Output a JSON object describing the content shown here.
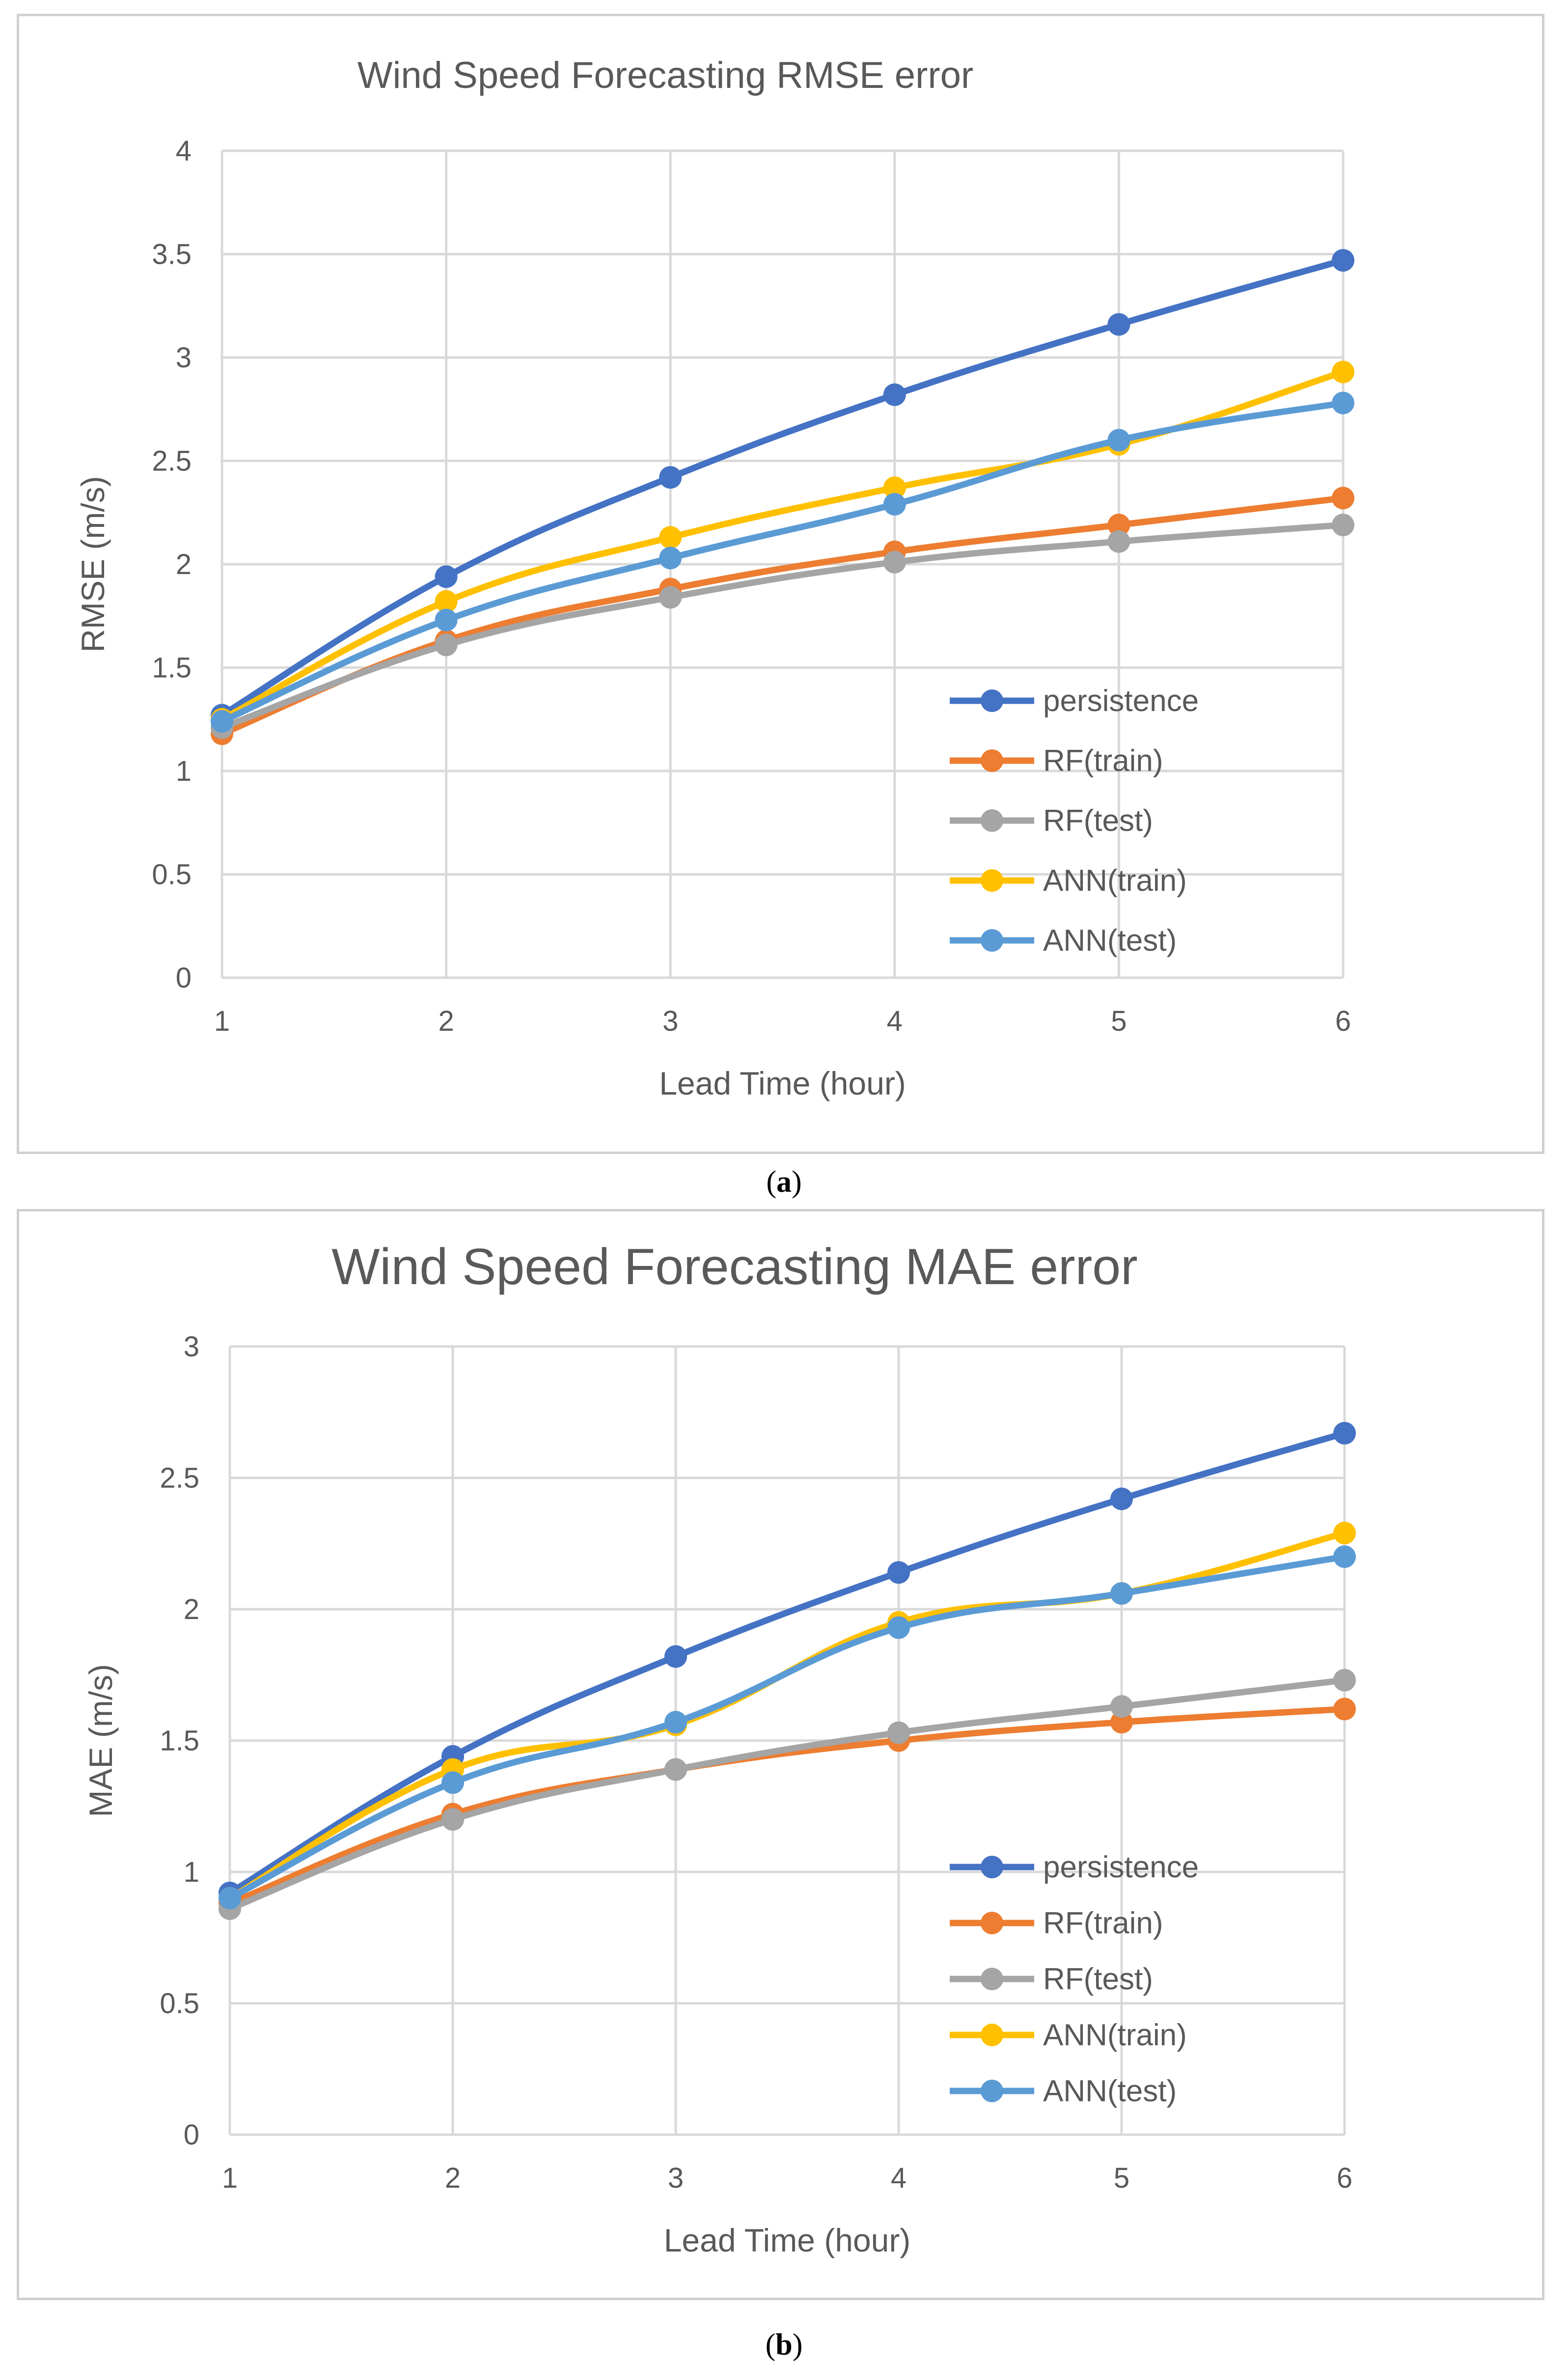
{
  "chart_data": [
    {
      "type": "line",
      "title": "Wind Speed Forecasting RMSE error",
      "xlabel": "Lead Time (hour)",
      "ylabel": "RMSE (m/s)",
      "ylim": [
        0,
        4
      ],
      "yticks": [
        "0",
        "0.5",
        "1",
        "1.5",
        "2",
        "2.5",
        "3",
        "3.5",
        "4"
      ],
      "categories": [
        "1",
        "2",
        "3",
        "4",
        "5",
        "6"
      ],
      "grid": true,
      "legend_position": "bottom-right",
      "caption": "a",
      "series": [
        {
          "name": "persistence",
          "color": "#4472C4",
          "values": [
            1.27,
            1.94,
            2.42,
            2.82,
            3.16,
            3.47
          ]
        },
        {
          "name": "RF(train)",
          "color": "#ED7D31",
          "values": [
            1.18,
            1.63,
            1.88,
            2.06,
            2.19,
            2.32
          ]
        },
        {
          "name": "RF(test)",
          "color": "#A5A5A5",
          "values": [
            1.21,
            1.61,
            1.84,
            2.01,
            2.11,
            2.19
          ]
        },
        {
          "name": "ANN(train)",
          "color": "#FFC000",
          "values": [
            1.25,
            1.82,
            2.13,
            2.37,
            2.58,
            2.93
          ]
        },
        {
          "name": "ANN(test)",
          "color": "#5B9BD5",
          "values": [
            1.24,
            1.73,
            2.03,
            2.29,
            2.6,
            2.78
          ]
        }
      ]
    },
    {
      "type": "line",
      "title": "Wind Speed Forecasting MAE error",
      "xlabel": "Lead Time (hour)",
      "ylabel": "MAE (m/s)",
      "ylim": [
        0,
        3
      ],
      "yticks": [
        "0",
        "0.5",
        "1",
        "1.5",
        "2",
        "2.5",
        "3"
      ],
      "categories": [
        "1",
        "2",
        "3",
        "4",
        "5",
        "6"
      ],
      "grid": true,
      "legend_position": "bottom-right",
      "caption": "b",
      "series": [
        {
          "name": "persistence",
          "color": "#4472C4",
          "values": [
            0.92,
            1.44,
            1.82,
            2.14,
            2.42,
            2.67
          ]
        },
        {
          "name": "RF(train)",
          "color": "#ED7D31",
          "values": [
            0.88,
            1.22,
            1.39,
            1.5,
            1.57,
            1.62
          ]
        },
        {
          "name": "RF(test)",
          "color": "#A5A5A5",
          "values": [
            0.86,
            1.2,
            1.39,
            1.53,
            1.63,
            1.73
          ]
        },
        {
          "name": "ANN(train)",
          "color": "#FFC000",
          "values": [
            0.9,
            1.39,
            1.56,
            1.95,
            2.06,
            2.29
          ]
        },
        {
          "name": "ANN(test)",
          "color": "#5B9BD5",
          "values": [
            0.9,
            1.34,
            1.57,
            1.93,
            2.06,
            2.2
          ]
        }
      ]
    }
  ]
}
